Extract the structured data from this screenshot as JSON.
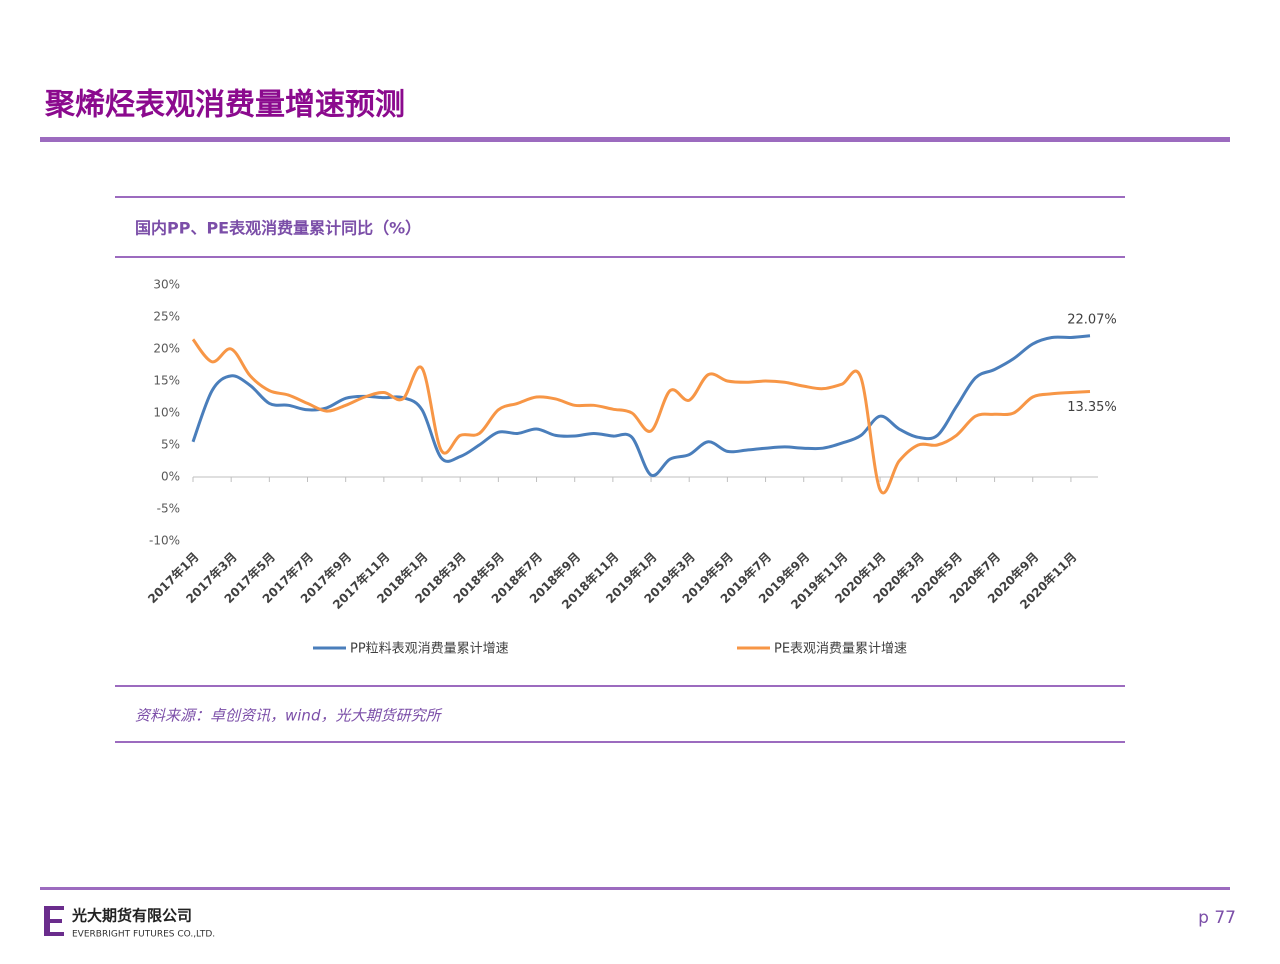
{
  "header": {
    "title": "聚烯烃表观消费量增速预测"
  },
  "chart_data": {
    "type": "line",
    "title": "国内PP、PE表观消费量累计同比（%）",
    "categories": [
      "2017年1月",
      null,
      "2017年3月",
      null,
      "2017年5月",
      null,
      "2017年7月",
      null,
      "2017年9月",
      null,
      "2017年11月",
      null,
      "2018年1月",
      null,
      "2018年3月",
      null,
      "2018年5月",
      null,
      "2018年7月",
      null,
      "2018年9月",
      null,
      "2018年11月",
      null,
      "2019年1月",
      null,
      "2019年3月",
      null,
      "2019年5月",
      null,
      "2019年7月",
      null,
      "2019年9月",
      null,
      "2019年11月",
      null,
      "2020年1月",
      null,
      "2020年3月",
      null,
      "2020年5月",
      null,
      "2020年7月",
      null,
      "2020年9月",
      null,
      "2020年11月",
      null
    ],
    "series": [
      {
        "name": "PP粒料表观消费量累计增速",
        "color": "#4a7ebb",
        "values": [
          5.5,
          13.5,
          15.8,
          14.3,
          11.5,
          11.2,
          10.5,
          10.8,
          12.3,
          12.6,
          12.4,
          12.4,
          10.5,
          3,
          3.2,
          5,
          7,
          6.8,
          7.5,
          6.5,
          6.4,
          6.8,
          6.4,
          6.2,
          0.3,
          2.8,
          3.5,
          5.5,
          4,
          4.2,
          4.5,
          4.7,
          4.5,
          4.5,
          5.3,
          6.5,
          9.5,
          7.5,
          6.2,
          6.5,
          11,
          15.5,
          16.8,
          18.5,
          20.8,
          21.8,
          21.8,
          22.07
        ],
        "value_labels": [
          null,
          null,
          null,
          null,
          null,
          null,
          null,
          null,
          null,
          null,
          null,
          null,
          null,
          null,
          null,
          null,
          null,
          null,
          null,
          null,
          null,
          null,
          null,
          null,
          null,
          null,
          null,
          null,
          null,
          null,
          null,
          null,
          null,
          null,
          null,
          null,
          null,
          null,
          null,
          null,
          null,
          null,
          null,
          null,
          null,
          null,
          null,
          "22.07%"
        ]
      },
      {
        "name": "PE表观消费量累计增速",
        "color": "#f79646",
        "values": [
          21.5,
          18,
          20,
          15.8,
          13.5,
          12.8,
          11.5,
          10.3,
          11.2,
          12.5,
          13.2,
          12.2,
          17,
          4.2,
          6.5,
          6.8,
          10.5,
          11.5,
          12.5,
          12.2,
          11.2,
          11.2,
          10.6,
          10,
          7.2,
          13.5,
          12,
          16,
          15,
          14.8,
          15,
          14.8,
          14.2,
          13.8,
          14.5,
          15.5,
          -2,
          2.5,
          5,
          5,
          6.5,
          9.5,
          9.8,
          10,
          12.5,
          13,
          13.2,
          13.35
        ],
        "value_labels": [
          null,
          null,
          null,
          null,
          null,
          null,
          null,
          null,
          null,
          null,
          null,
          null,
          null,
          null,
          null,
          null,
          null,
          null,
          null,
          null,
          null,
          null,
          null,
          null,
          null,
          null,
          null,
          null,
          null,
          null,
          null,
          null,
          null,
          null,
          null,
          null,
          null,
          null,
          null,
          null,
          null,
          null,
          null,
          null,
          null,
          null,
          null,
          "13.35%"
        ]
      }
    ],
    "ylim": [
      -10,
      30
    ],
    "yticks": [
      {
        "value": -10,
        "label": "-10%"
      },
      {
        "value": -5,
        "label": "-5%"
      },
      {
        "value": 0,
        "label": "0%"
      },
      {
        "value": 5,
        "label": "5%"
      },
      {
        "value": 10,
        "label": "10%"
      },
      {
        "value": 15,
        "label": "15%"
      },
      {
        "value": 20,
        "label": "20%"
      },
      {
        "value": 25,
        "label": "25%"
      },
      {
        "value": 30,
        "label": "30%"
      }
    ],
    "grid": false,
    "legend": "bottom"
  },
  "source": "资料来源：卓创资讯，wind，光大期货研究所",
  "footer": {
    "company_cn": "光大期货有限公司",
    "company_en": "EVERBRIGHT FUTURES CO.,LTD.",
    "page": "p 77"
  }
}
